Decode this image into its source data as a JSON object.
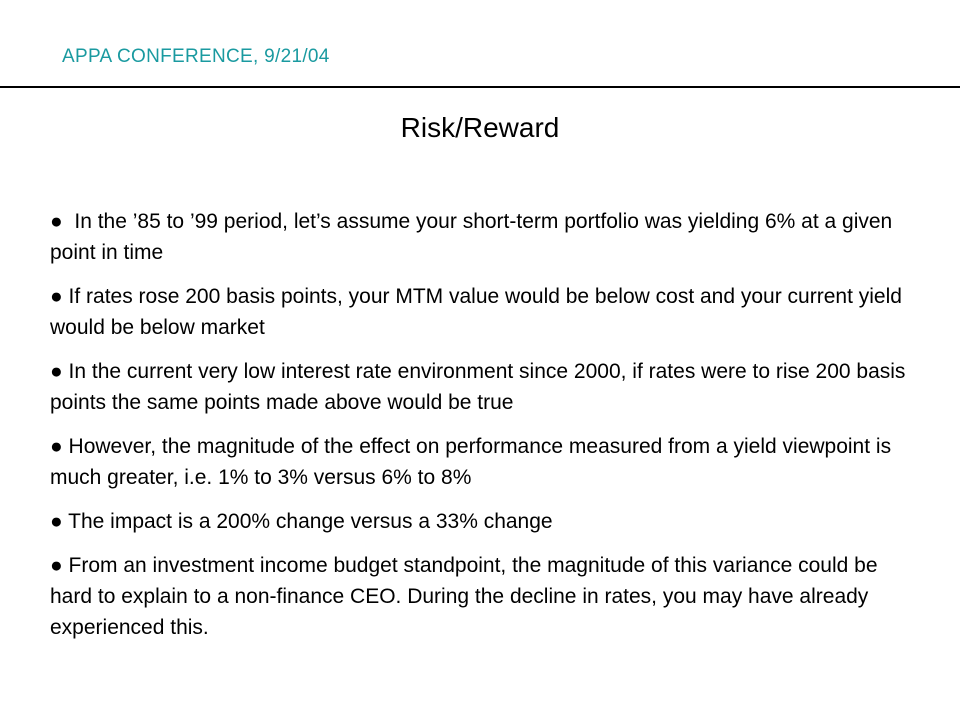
{
  "header": {
    "text": "APPA CONFERENCE, 9/21/04",
    "accent_color": "#1a9aa0"
  },
  "slide": {
    "title": "Risk/Reward",
    "bullet_glyph": "●",
    "bullets": [
      "  In the ’85 to ’99 period, let’s assume your short-term portfolio was yielding 6% at a given point in time",
      " If rates rose 200 basis points, your MTM value would be below cost and your current yield would be below market",
      " In the current very low interest rate environment since 2000, if rates were to rise 200 basis points the same points made above would be true",
      " However, the magnitude of the effect on performance measured from a yield viewpoint is much greater, i.e. 1% to 3% versus 6% to 8%",
      " The impact is a 200% change versus a 33% change",
      " From an investment income budget standpoint, the magnitude of this variance could be hard to explain to a non-finance CEO. During the decline in rates, you may have already experienced this."
    ]
  }
}
